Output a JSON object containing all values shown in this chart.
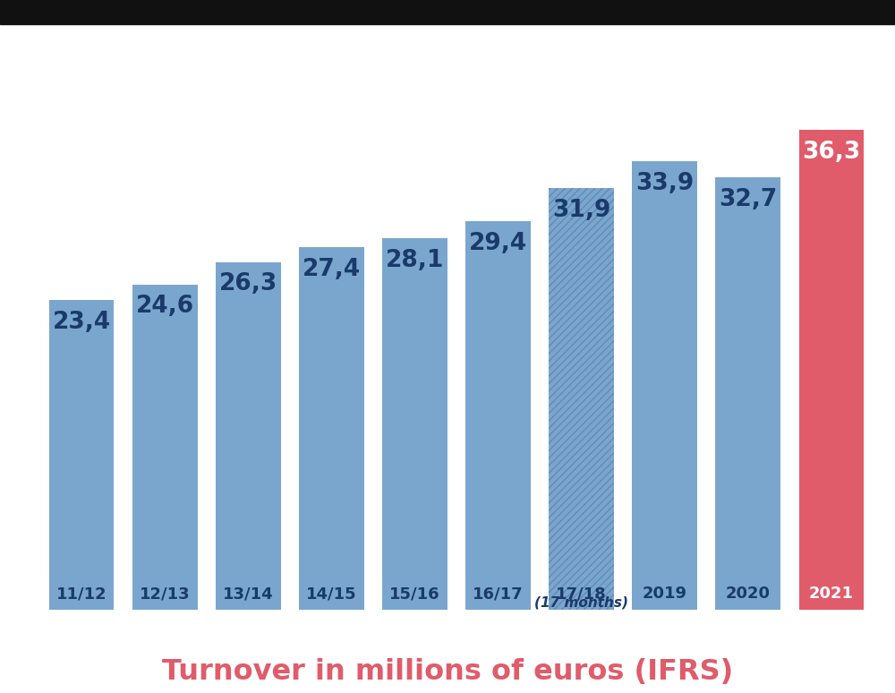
{
  "categories": [
    "11/12",
    "12/13",
    "13/14",
    "14/15",
    "15/16",
    "16/17",
    "17/18\n(17 months)",
    "2019",
    "2020",
    "2021"
  ],
  "values": [
    23.4,
    24.6,
    26.3,
    27.4,
    28.1,
    29.4,
    31.9,
    33.9,
    32.7,
    36.3
  ],
  "bar_colors": [
    "#7aa6ce",
    "#7aa6ce",
    "#7aa6ce",
    "#7aa6ce",
    "#7aa6ce",
    "#7aa6ce",
    "#7aa6ce",
    "#7aa6ce",
    "#7aa6ce",
    "#e05c6a"
  ],
  "hatched": [
    false,
    false,
    false,
    false,
    false,
    false,
    true,
    false,
    false,
    false
  ],
  "value_label_colors": [
    "#1a3a6b",
    "#1a3a6b",
    "#1a3a6b",
    "#1a3a6b",
    "#1a3a6b",
    "#1a3a6b",
    "#1a3a6b",
    "#1a3a6b",
    "#1a3a6b",
    "#ffffff"
  ],
  "cat_label_colors": [
    "#1a3a6b",
    "#1a3a6b",
    "#1a3a6b",
    "#1a3a6b",
    "#1a3a6b",
    "#1a3a6b",
    "#1a3a6b",
    "#1a3a6b",
    "#1a3a6b",
    "#ffffff"
  ],
  "title": "Turnover in millions of euros (IFRS)",
  "title_color": "#e05c6a",
  "title_fontsize": 23,
  "background_color": "#ffffff",
  "ylim": [
    0,
    44
  ],
  "value_label_fontsize": 19,
  "cat_label_fontsize": 13,
  "cat_label_fontsize2": 11,
  "hatch_color": "#5577aa",
  "hatch_pattern": "////",
  "bar_width": 0.78,
  "top_bar_height": 30,
  "header_color": "#111111"
}
